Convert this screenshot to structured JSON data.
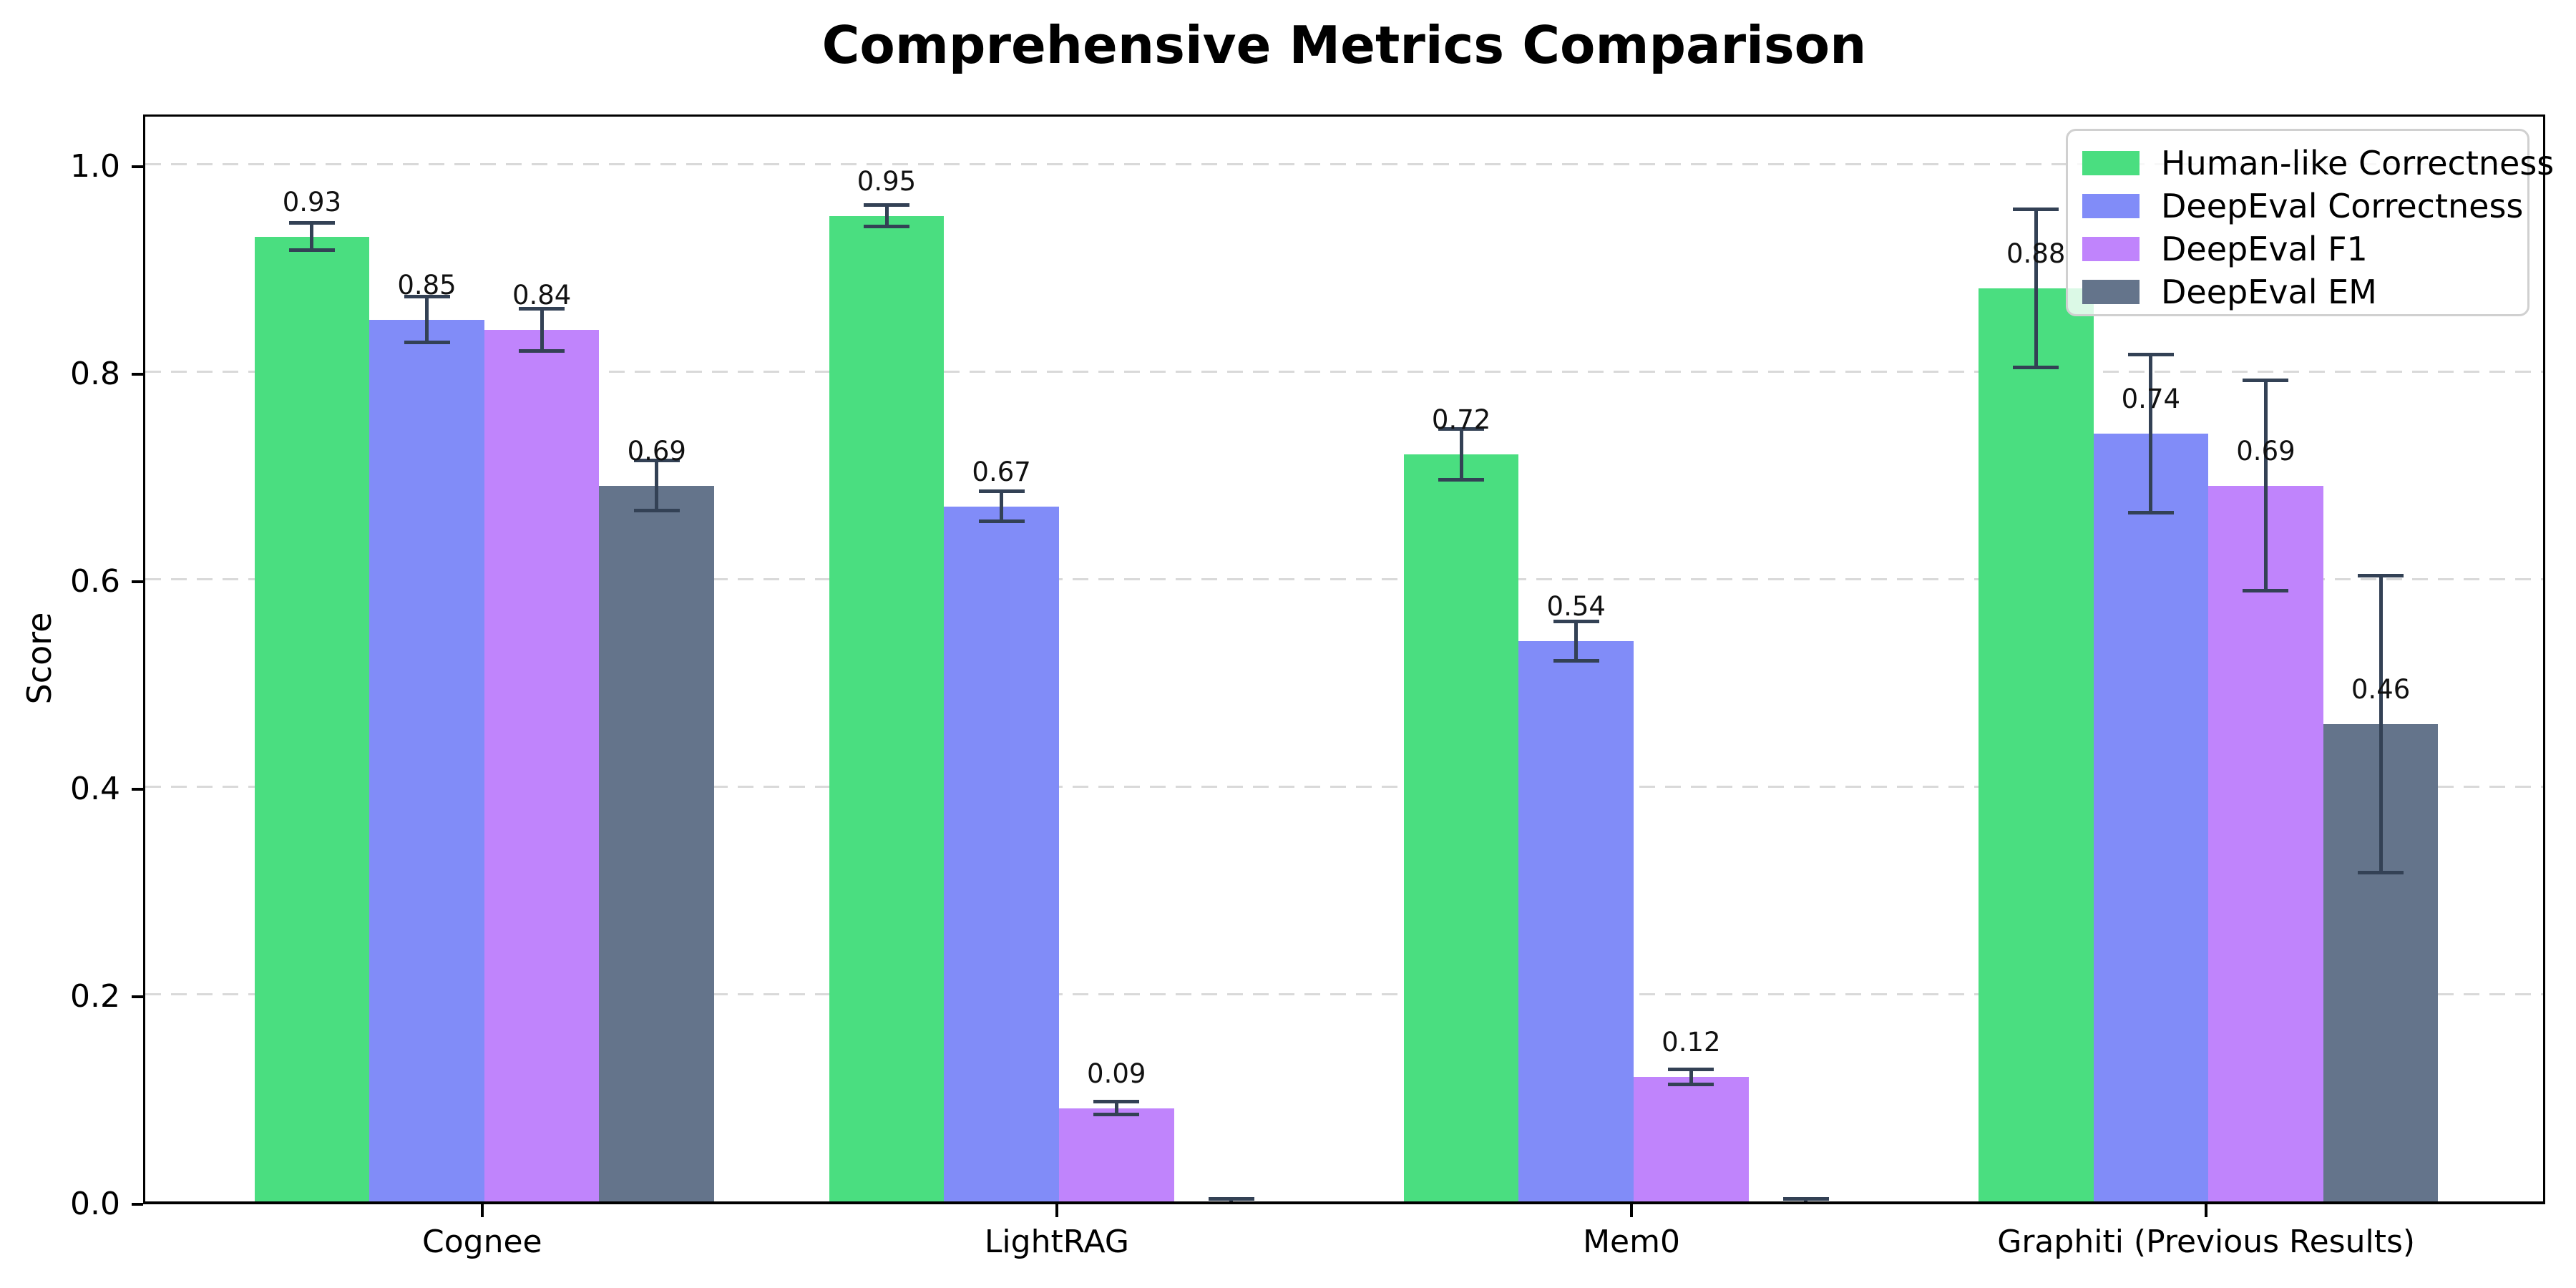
{
  "chart_data": {
    "type": "bar",
    "title": "Comprehensive Metrics Comparison",
    "xlabel": "",
    "ylabel": "Score",
    "categories": [
      "Cognee",
      "LightRAG",
      "Mem0",
      "Graphiti (Previous Results)"
    ],
    "series": [
      {
        "name": "Human-like Correctness",
        "color": "#4ade80",
        "values": [
          0.93,
          0.95,
          0.72,
          0.88
        ],
        "errors": [
          0.015,
          0.012,
          0.026,
          0.078
        ],
        "labels": [
          "0.93",
          "0.95",
          "0.72",
          "0.88"
        ]
      },
      {
        "name": "DeepEval Correctness",
        "color": "#818cf8",
        "values": [
          0.85,
          0.67,
          0.54,
          0.74
        ],
        "errors": [
          0.024,
          0.016,
          0.021,
          0.078
        ],
        "labels": [
          "0.85",
          "0.67",
          "0.54",
          "0.74"
        ]
      },
      {
        "name": "DeepEval F1",
        "color": "#c084fc",
        "values": [
          0.84,
          0.09,
          0.12,
          0.69
        ],
        "errors": [
          0.022,
          0.008,
          0.009,
          0.103
        ],
        "labels": [
          "0.84",
          "0.09",
          "0.12",
          "0.69"
        ]
      },
      {
        "name": "DeepEval EM",
        "color": "#64748b",
        "values": [
          0.69,
          0.0,
          0.0,
          0.46
        ],
        "errors": [
          0.026,
          0.004,
          0.004,
          0.145
        ],
        "labels": [
          "0.69",
          "",
          "",
          "0.46"
        ]
      }
    ],
    "ylim": [
      0,
      1.05
    ],
    "yticks": [
      0,
      0.2,
      0.4,
      0.6,
      0.8,
      1.0
    ],
    "ytick_labels": [
      "0.0",
      "0.2",
      "0.4",
      "0.6",
      "0.8",
      "1.0"
    ],
    "grid": {
      "axis": "y",
      "style": "dashed",
      "color": "#d9d9d9"
    },
    "legend": {
      "position": "upper right",
      "labels": [
        "Human-like Correctness",
        "DeepEval Correctness",
        "DeepEval F1",
        "DeepEval EM"
      ]
    },
    "error_bar_color": "#334155"
  }
}
